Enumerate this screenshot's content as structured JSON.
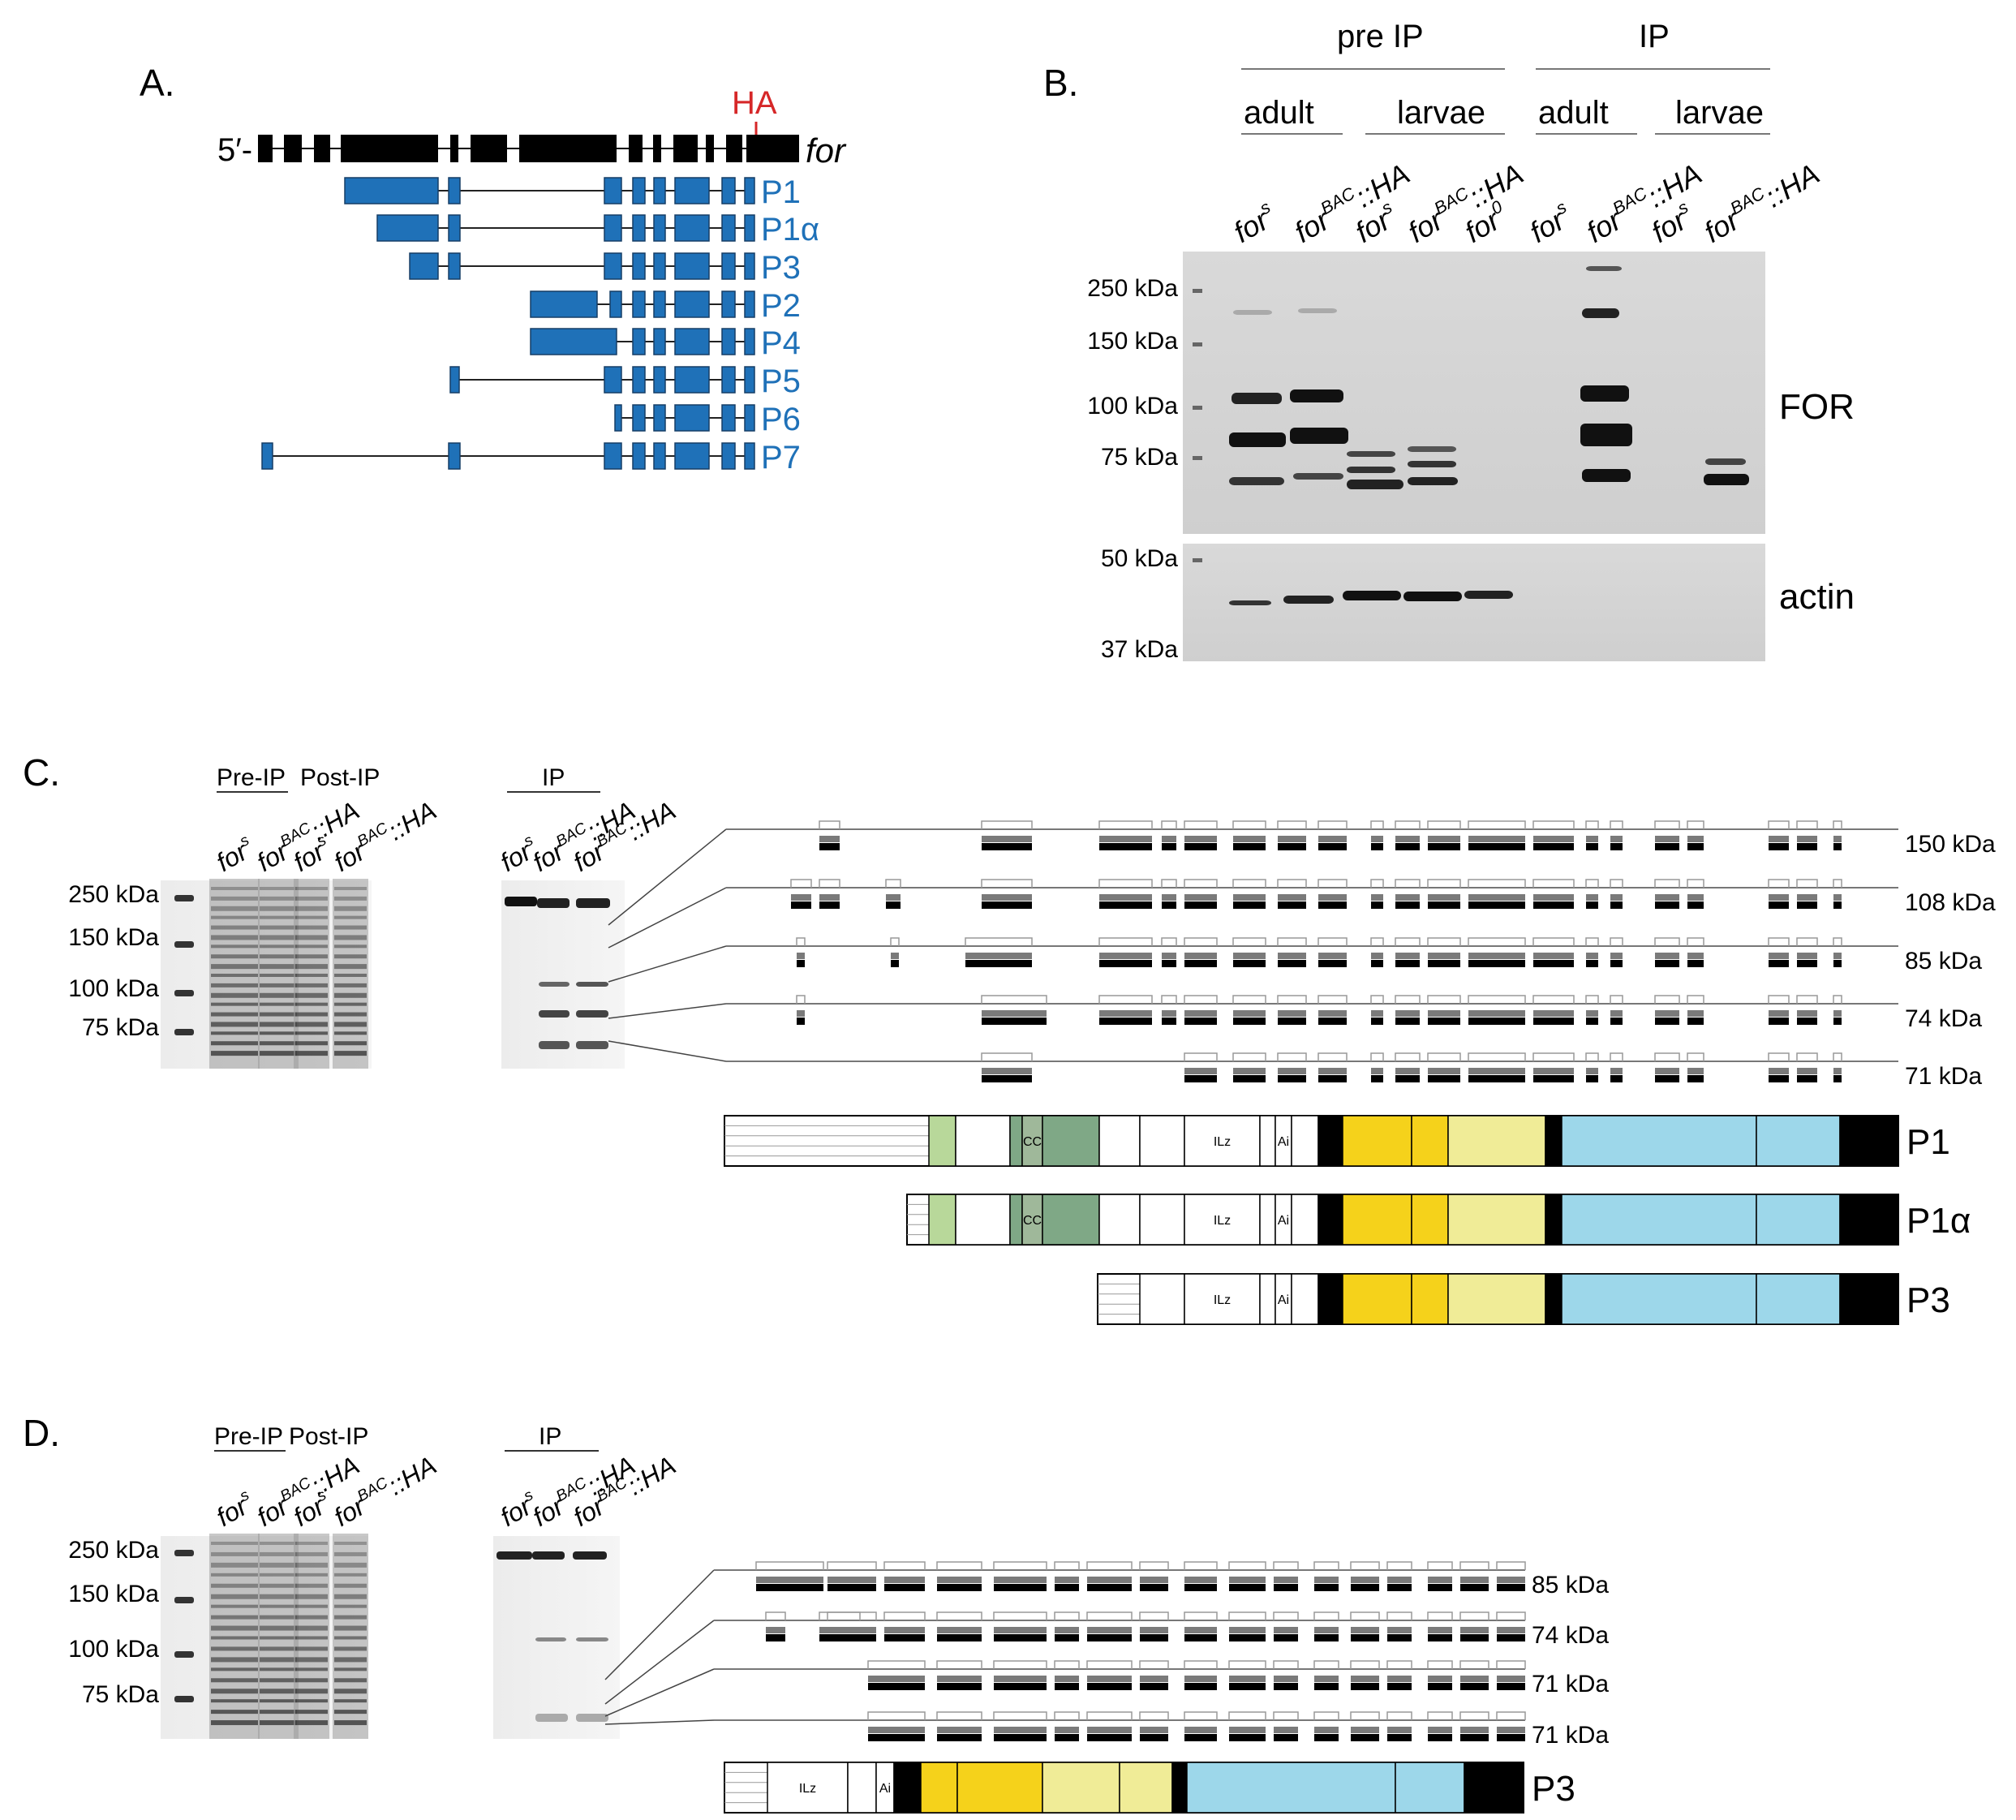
{
  "colors": {
    "isoform_blue": "#1f71b8",
    "ha_red": "#d62728",
    "gene_black": "#000000",
    "domain_yellow": "#f5d21b",
    "domain_pale_yellow": "#f0ec97",
    "domain_blue": "#9dd7ea",
    "domain_green_light": "#b8d89a",
    "domain_green_mid": "#9fb89a",
    "domain_green_dark": "#7fa886"
  },
  "panel_a": {
    "letter": "A.",
    "five_prime": "5′-",
    "gene": "for",
    "tag": "HA",
    "isoforms": [
      "P1",
      "P1α",
      "P3",
      "P2",
      "P4",
      "P5",
      "P6",
      "P7"
    ]
  },
  "panel_b": {
    "letter": "B.",
    "group_pre": "pre IP",
    "group_ip": "IP",
    "sub_adult": "adult",
    "sub_larvae": "larvae",
    "lanes": [
      {
        "base": "for",
        "sup": "s",
        "suffix": ""
      },
      {
        "base": "for",
        "sup": "BAC",
        "suffix": "::HA"
      },
      {
        "base": "for",
        "sup": "s",
        "suffix": ""
      },
      {
        "base": "for",
        "sup": "BAC",
        "suffix": "::HA"
      },
      {
        "base": "for",
        "sup": "0",
        "suffix": ""
      },
      {
        "base": "for",
        "sup": "s",
        "suffix": ""
      },
      {
        "base": "for",
        "sup": "BAC",
        "suffix": "::HA"
      },
      {
        "base": "for",
        "sup": "s",
        "suffix": ""
      },
      {
        "base": "for",
        "sup": "BAC",
        "suffix": "::HA"
      }
    ],
    "markers_top": [
      "250 kDa",
      "150 kDa",
      "100 kDa",
      "75 kDa"
    ],
    "markers_bottom": [
      "50 kDa",
      "37 kDa"
    ],
    "label_top": "FOR",
    "label_bottom": "actin"
  },
  "panel_c": {
    "letter": "C.",
    "pre_ip": "Pre-IP",
    "post_ip": "Post-IP",
    "ip": "IP",
    "lanes": [
      {
        "base": "for",
        "sup": "s",
        "suffix": ""
      },
      {
        "base": "for",
        "sup": "BAC",
        "suffix": "::HA"
      },
      {
        "base": "for",
        "sup": "s",
        "suffix": ""
      },
      {
        "base": "for",
        "sup": "BAC",
        "suffix": "::HA"
      },
      {
        "base": "for",
        "sup": "s",
        "suffix": ""
      },
      {
        "base": "for",
        "sup": "BAC",
        "suffix": "::HA"
      },
      {
        "base": "for",
        "sup": "BAC",
        "suffix": "::HA"
      }
    ],
    "markers": [
      "250 kDa",
      "150 kDa",
      "100 kDa",
      "75 kDa"
    ],
    "coverage_bands": [
      "150 kDa",
      "108 kDa",
      "85 kDa",
      "74 kDa",
      "71 kDa"
    ],
    "isoforms": [
      "P1",
      "P1α",
      "P3"
    ],
    "domain_labels": {
      "cc": "CC",
      "ilz": "ILz",
      "ai": "Ai"
    }
  },
  "panel_d": {
    "letter": "D.",
    "pre_ip": "Pre-IP",
    "post_ip": "Post-IP",
    "ip": "IP",
    "lanes": [
      {
        "base": "for",
        "sup": "s",
        "suffix": ""
      },
      {
        "base": "for",
        "sup": "BAC",
        "suffix": "::HA"
      },
      {
        "base": "for",
        "sup": "s",
        "suffix": ""
      },
      {
        "base": "for",
        "sup": "BAC",
        "suffix": "::HA"
      },
      {
        "base": "for",
        "sup": "s",
        "suffix": ""
      },
      {
        "base": "for",
        "sup": "BAC",
        "suffix": "::HA"
      },
      {
        "base": "for",
        "sup": "BAC",
        "suffix": "::HA"
      }
    ],
    "markers": [
      "250 kDa",
      "150 kDa",
      "100 kDa",
      "75 kDa"
    ],
    "coverage_bands": [
      "85 kDa",
      "74 kDa",
      "71 kDa",
      "71 kDa"
    ],
    "isoform": "P3",
    "domain_labels": {
      "ilz": "ILz",
      "ai": "Ai"
    }
  }
}
